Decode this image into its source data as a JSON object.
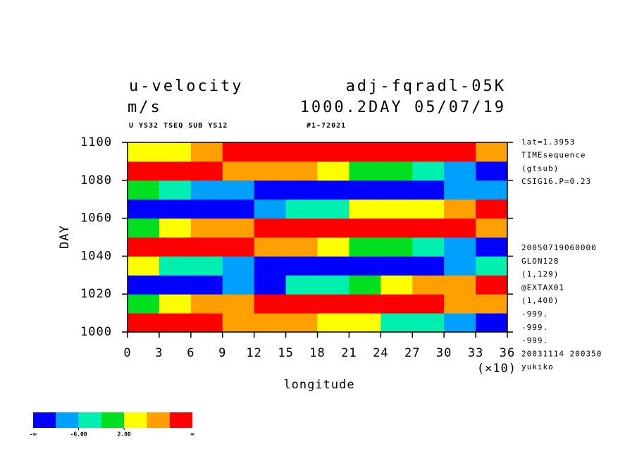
{
  "chart_data": {
    "type": "shaded-contour",
    "title": "u-velocity",
    "experiment": "adj-fqradl-05K",
    "units": "m/s",
    "time_label": "1000.2DAY 05/07/19",
    "subtitle": "U YS32 TSEQ SUB YS12",
    "run_id": "#1-72021",
    "xlabel": "longitude",
    "xscale_label": "(×10)",
    "ylabel": "DAY",
    "x_edges": [
      0,
      3,
      6,
      9,
      12,
      15,
      18,
      21,
      24,
      27,
      30,
      33,
      36
    ],
    "y_edges": [
      1000,
      1010,
      1020,
      1030,
      1040,
      1050,
      1060,
      1070,
      1080,
      1090,
      1100
    ],
    "z": [
      [
        14,
        12,
        12,
        9,
        9,
        6,
        3,
        2,
        -3,
        -5,
        -9,
        -11
      ],
      [
        0,
        5,
        6,
        9,
        12,
        11,
        14,
        15,
        14,
        12,
        9,
        8
      ],
      [
        -14,
        -12,
        -12,
        -9,
        -11,
        -5,
        -3,
        0,
        5,
        6,
        8,
        12
      ],
      [
        2,
        -5,
        -6,
        -8,
        -12,
        -12,
        -15,
        -14,
        -12,
        -11,
        -9,
        -6
      ],
      [
        12,
        14,
        11,
        11,
        8,
        8,
        5,
        0,
        -2,
        -6,
        -8,
        -11
      ],
      [
        -2,
        2,
        6,
        8,
        11,
        12,
        14,
        15,
        14,
        14,
        11,
        6
      ],
      [
        -12,
        -14,
        -11,
        -11,
        -8,
        -6,
        -5,
        2,
        3,
        5,
        9,
        12
      ],
      [
        0,
        -3,
        -8,
        -8,
        -11,
        -12,
        -14,
        -12,
        -14,
        -11,
        -9,
        -8
      ],
      [
        14,
        12,
        11,
        9,
        9,
        6,
        2,
        0,
        -2,
        -6,
        -8,
        -11
      ],
      [
        2,
        3,
        6,
        11,
        11,
        12,
        14,
        15,
        12,
        12,
        11,
        6
      ]
    ],
    "xlim": [
      0,
      36
    ],
    "xticks": [
      0,
      3,
      6,
      9,
      12,
      15,
      18,
      21,
      24,
      27,
      30,
      33,
      36
    ],
    "ylim": [
      1000,
      1100
    ],
    "yticks": [
      1000,
      1020,
      1040,
      1060,
      1080,
      1100
    ],
    "levels": [
      -10,
      -6,
      -2,
      2,
      6,
      10
    ],
    "colors": [
      "#0000ff",
      "#00a0ff",
      "#00f0b0",
      "#00e020",
      "#ffff00",
      "#ffa000",
      "#ff0000"
    ],
    "colorbar_labels": [
      {
        "value": -6,
        "label": "-6.00"
      },
      {
        "value": 2,
        "label": "2.00"
      }
    ],
    "colorbar_ends": [
      "-∞",
      "∞"
    ],
    "info_top": [
      "lat=1.3953",
      "TIMEsequence",
      "(gtsub)",
      "CSIG16.P=0.23"
    ],
    "info_bottom": [
      "20050719060000",
      "GLON128",
      "(1,129)",
      "@EXTAX01",
      "(1,400)",
      "-999.",
      "-999.",
      "-999.",
      "20031114 200350",
      "yukiko"
    ]
  }
}
